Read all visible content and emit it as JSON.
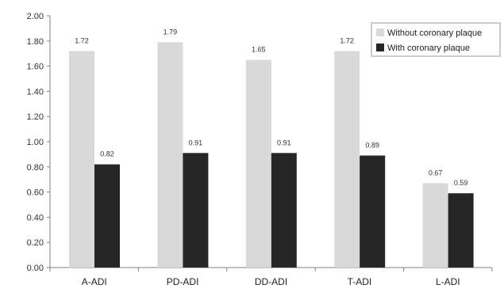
{
  "chart_data": {
    "type": "bar",
    "categories": [
      "A-ADI",
      "PD-ADI",
      "DD-ADI",
      "T-ADI",
      "L-ADI"
    ],
    "series": [
      {
        "name": "Without coronary plaque",
        "values": [
          1.72,
          1.79,
          1.65,
          1.72,
          0.67
        ],
        "color": "#d9d9d9",
        "labels": [
          "1.72",
          "1.79",
          "1.65",
          "1.72",
          "0.67"
        ]
      },
      {
        "name": "With coronary plaque",
        "values": [
          0.82,
          0.91,
          0.91,
          0.89,
          0.59
        ],
        "color": "#262626",
        "labels": [
          "0.82",
          "0.91",
          "0.91",
          "0.89",
          "0.59"
        ]
      }
    ],
    "ylim": [
      0,
      2.0
    ],
    "yticks": [
      "0.00",
      "0.20",
      "0.40",
      "0.60",
      "0.80",
      "1.00",
      "1.20",
      "1.40",
      "1.60",
      "1.80",
      "2.00"
    ],
    "grid": false,
    "legend_position": "top-right",
    "title": "",
    "xlabel": "",
    "ylabel": ""
  }
}
